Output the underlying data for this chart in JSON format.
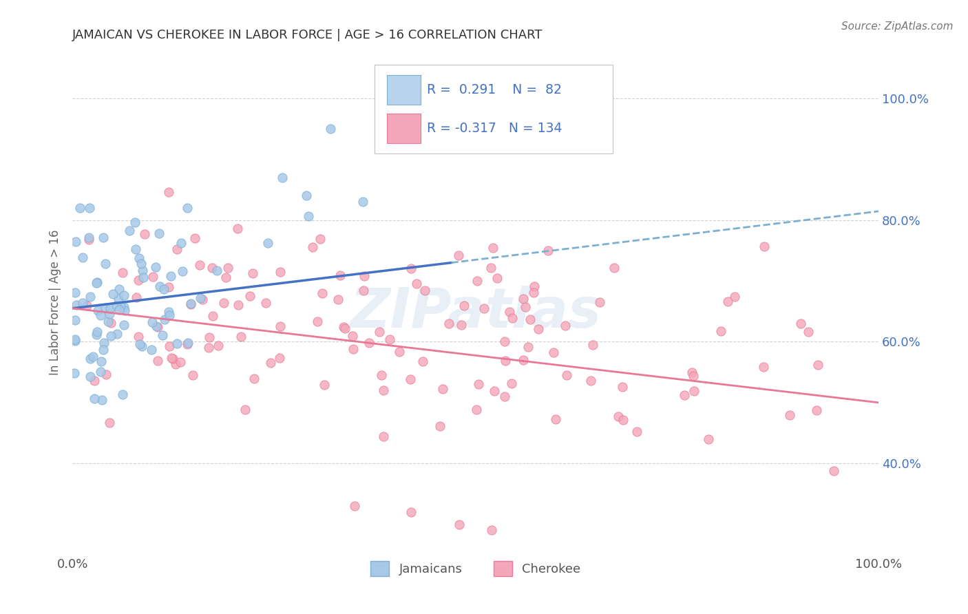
{
  "title": "JAMAICAN VS CHEROKEE IN LABOR FORCE | AGE > 16 CORRELATION CHART",
  "source": "Source: ZipAtlas.com",
  "ylabel": "In Labor Force | Age > 16",
  "jamaican_R": 0.291,
  "jamaican_N": 82,
  "cherokee_R": -0.317,
  "cherokee_N": 134,
  "jamaican_scatter_color": "#a8c8e8",
  "jamaican_scatter_edge": "#7bafd4",
  "cherokee_scatter_color": "#f4a7b9",
  "cherokee_scatter_edge": "#e87896",
  "trend_jamaican_solid": "#4472c4",
  "trend_jamaican_dash": "#7bafd4",
  "trend_cherokee": "#e87896",
  "legend_box_jamaican_fill": "#b8d4ec",
  "legend_box_jamaican_edge": "#7bafd4",
  "legend_box_cherokee_fill": "#f4a7b9",
  "legend_box_cherokee_edge": "#e87896",
  "legend_text_color": "#4472c4",
  "title_color": "#333333",
  "source_color": "#777777",
  "background": "#ffffff",
  "xlim": [
    0.0,
    1.0
  ],
  "ylim": [
    0.25,
    1.08
  ],
  "ytick_positions": [
    0.4,
    0.6,
    0.8,
    1.0
  ],
  "yticklabels_right": [
    "40.0%",
    "60.0%",
    "80.0%",
    "100.0%"
  ],
  "grid_color": "#d0d0d0",
  "watermark": "ZIPatlas",
  "seed": 7
}
